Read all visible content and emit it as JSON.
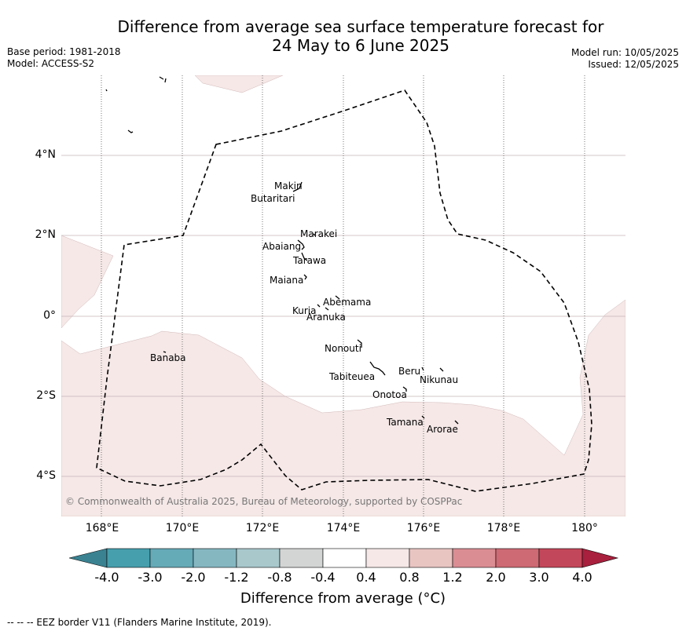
{
  "title_line1": "Difference from average sea surface temperature forecast for",
  "title_line2": "24 May to 6 June 2025",
  "base_period": "Base period: 1981-2018",
  "model": "Model: ACCESS-S2",
  "model_run": "Model run: 10/05/2025",
  "issued": "Issued: 12/05/2025",
  "copyright": "© Commonwealth of Australia 2025, Bureau of Meteorology, supported by COSPPac",
  "lat_labels": [
    "4°N",
    "2°N",
    "0°",
    "2°S",
    "4°S"
  ],
  "lon_labels": [
    "168°E",
    "170°E",
    "172°E",
    "174°E",
    "176°E",
    "178°E",
    "180°"
  ],
  "places": [
    "Makin",
    "Butaritari",
    "Marakei",
    "Abaiang",
    "Tarawa",
    "Maiana",
    "Abemama",
    "Kuria",
    "Aranuka",
    "Banaba",
    "Nonouti",
    "Tabiteuea",
    "Beru",
    "Nikunau",
    "Onotoa",
    "Tamana",
    "Arorae"
  ],
  "colorbar": {
    "ticks": [
      "-4.0",
      "-3.0",
      "-2.0",
      "-1.2",
      "-0.8",
      "-0.4",
      "0.4",
      "0.8",
      "1.2",
      "2.0",
      "3.0",
      "4.0"
    ],
    "colors": [
      "#3a8291",
      "#469fad",
      "#65aab7",
      "#85b7c1",
      "#a8c8cc",
      "#d3d5d5",
      "#ffffff",
      "#f5e8e7",
      "#e9c5c2",
      "#da8d93",
      "#cd6a73",
      "#c3475a",
      "#a8203d"
    ],
    "label": "Difference from average (°C)"
  },
  "legend_footer": "--  --  -- EEZ border V11 (Flanders Marine Institute, 2019).",
  "colors": {
    "warm_fill": "#f5e8e7",
    "border": "#000000"
  }
}
